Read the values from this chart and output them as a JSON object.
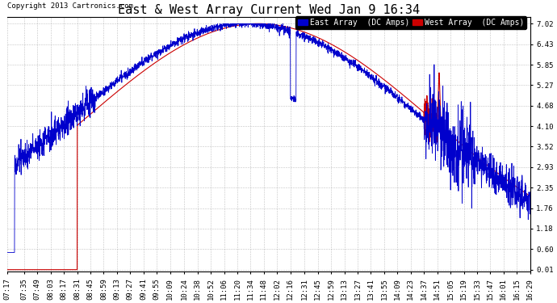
{
  "title": "East & West Array Current Wed Jan 9 16:34",
  "copyright": "Copyright 2013 Cartronics.com",
  "legend_east": "East Array  (DC Amps)",
  "legend_west": "West Array  (DC Amps)",
  "east_color": "#0000cc",
  "west_color": "#cc0000",
  "background_color": "#ffffff",
  "plot_bg_color": "#ffffff",
  "grid_color": "#999999",
  "yticks": [
    0.01,
    0.6,
    1.18,
    1.76,
    2.35,
    2.93,
    3.52,
    4.1,
    4.68,
    5.27,
    5.85,
    6.43,
    7.02
  ],
  "ylim": [
    -0.05,
    7.2
  ],
  "title_fontsize": 11,
  "tick_fontsize": 6.5,
  "legend_fontsize": 7,
  "xtick_labels": [
    "07:17",
    "07:35",
    "07:49",
    "08:03",
    "08:17",
    "08:31",
    "08:45",
    "08:59",
    "09:13",
    "09:27",
    "09:41",
    "09:55",
    "10:09",
    "10:24",
    "10:38",
    "10:52",
    "11:06",
    "11:20",
    "11:34",
    "11:48",
    "12:02",
    "12:16",
    "12:31",
    "12:45",
    "12:59",
    "13:13",
    "13:27",
    "13:41",
    "13:55",
    "14:09",
    "14:23",
    "14:37",
    "14:51",
    "15:05",
    "15:19",
    "15:33",
    "15:47",
    "16:01",
    "16:15",
    "16:29"
  ]
}
